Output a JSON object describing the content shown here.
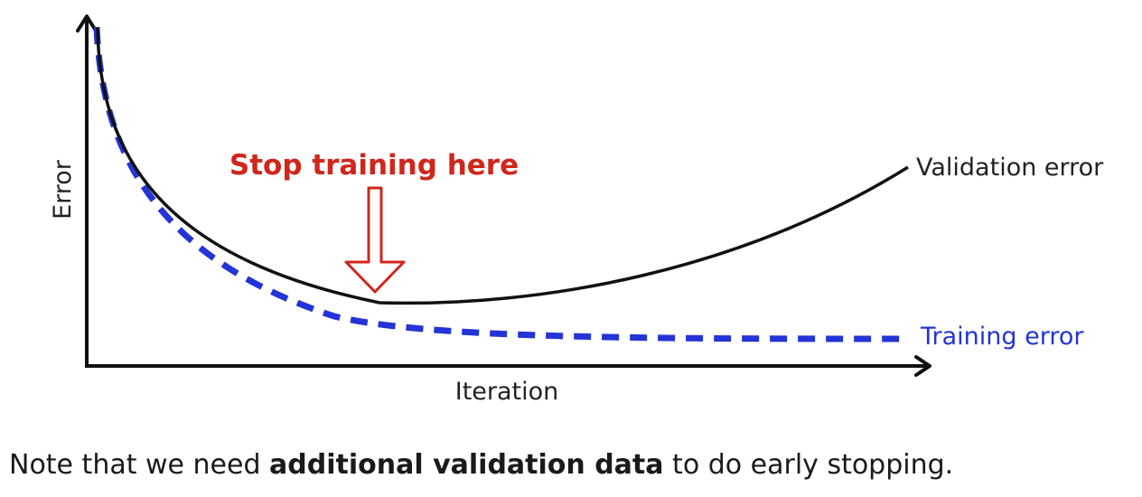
{
  "diagram": {
    "y_axis_label": "Error",
    "x_axis_label": "Iteration",
    "annotation": "Stop training here",
    "series": {
      "validation": {
        "label": "Validation error",
        "color": "#111111",
        "style": "solid"
      },
      "training": {
        "label": "Training error",
        "color": "#2434d6",
        "style": "dashed"
      }
    },
    "annotation_color": "#d0261c",
    "arrow_icon": "down-arrow-icon"
  },
  "caption": {
    "part1": "Note that we need ",
    "bold": "additional validation data",
    "part2": " to do early stopping."
  }
}
